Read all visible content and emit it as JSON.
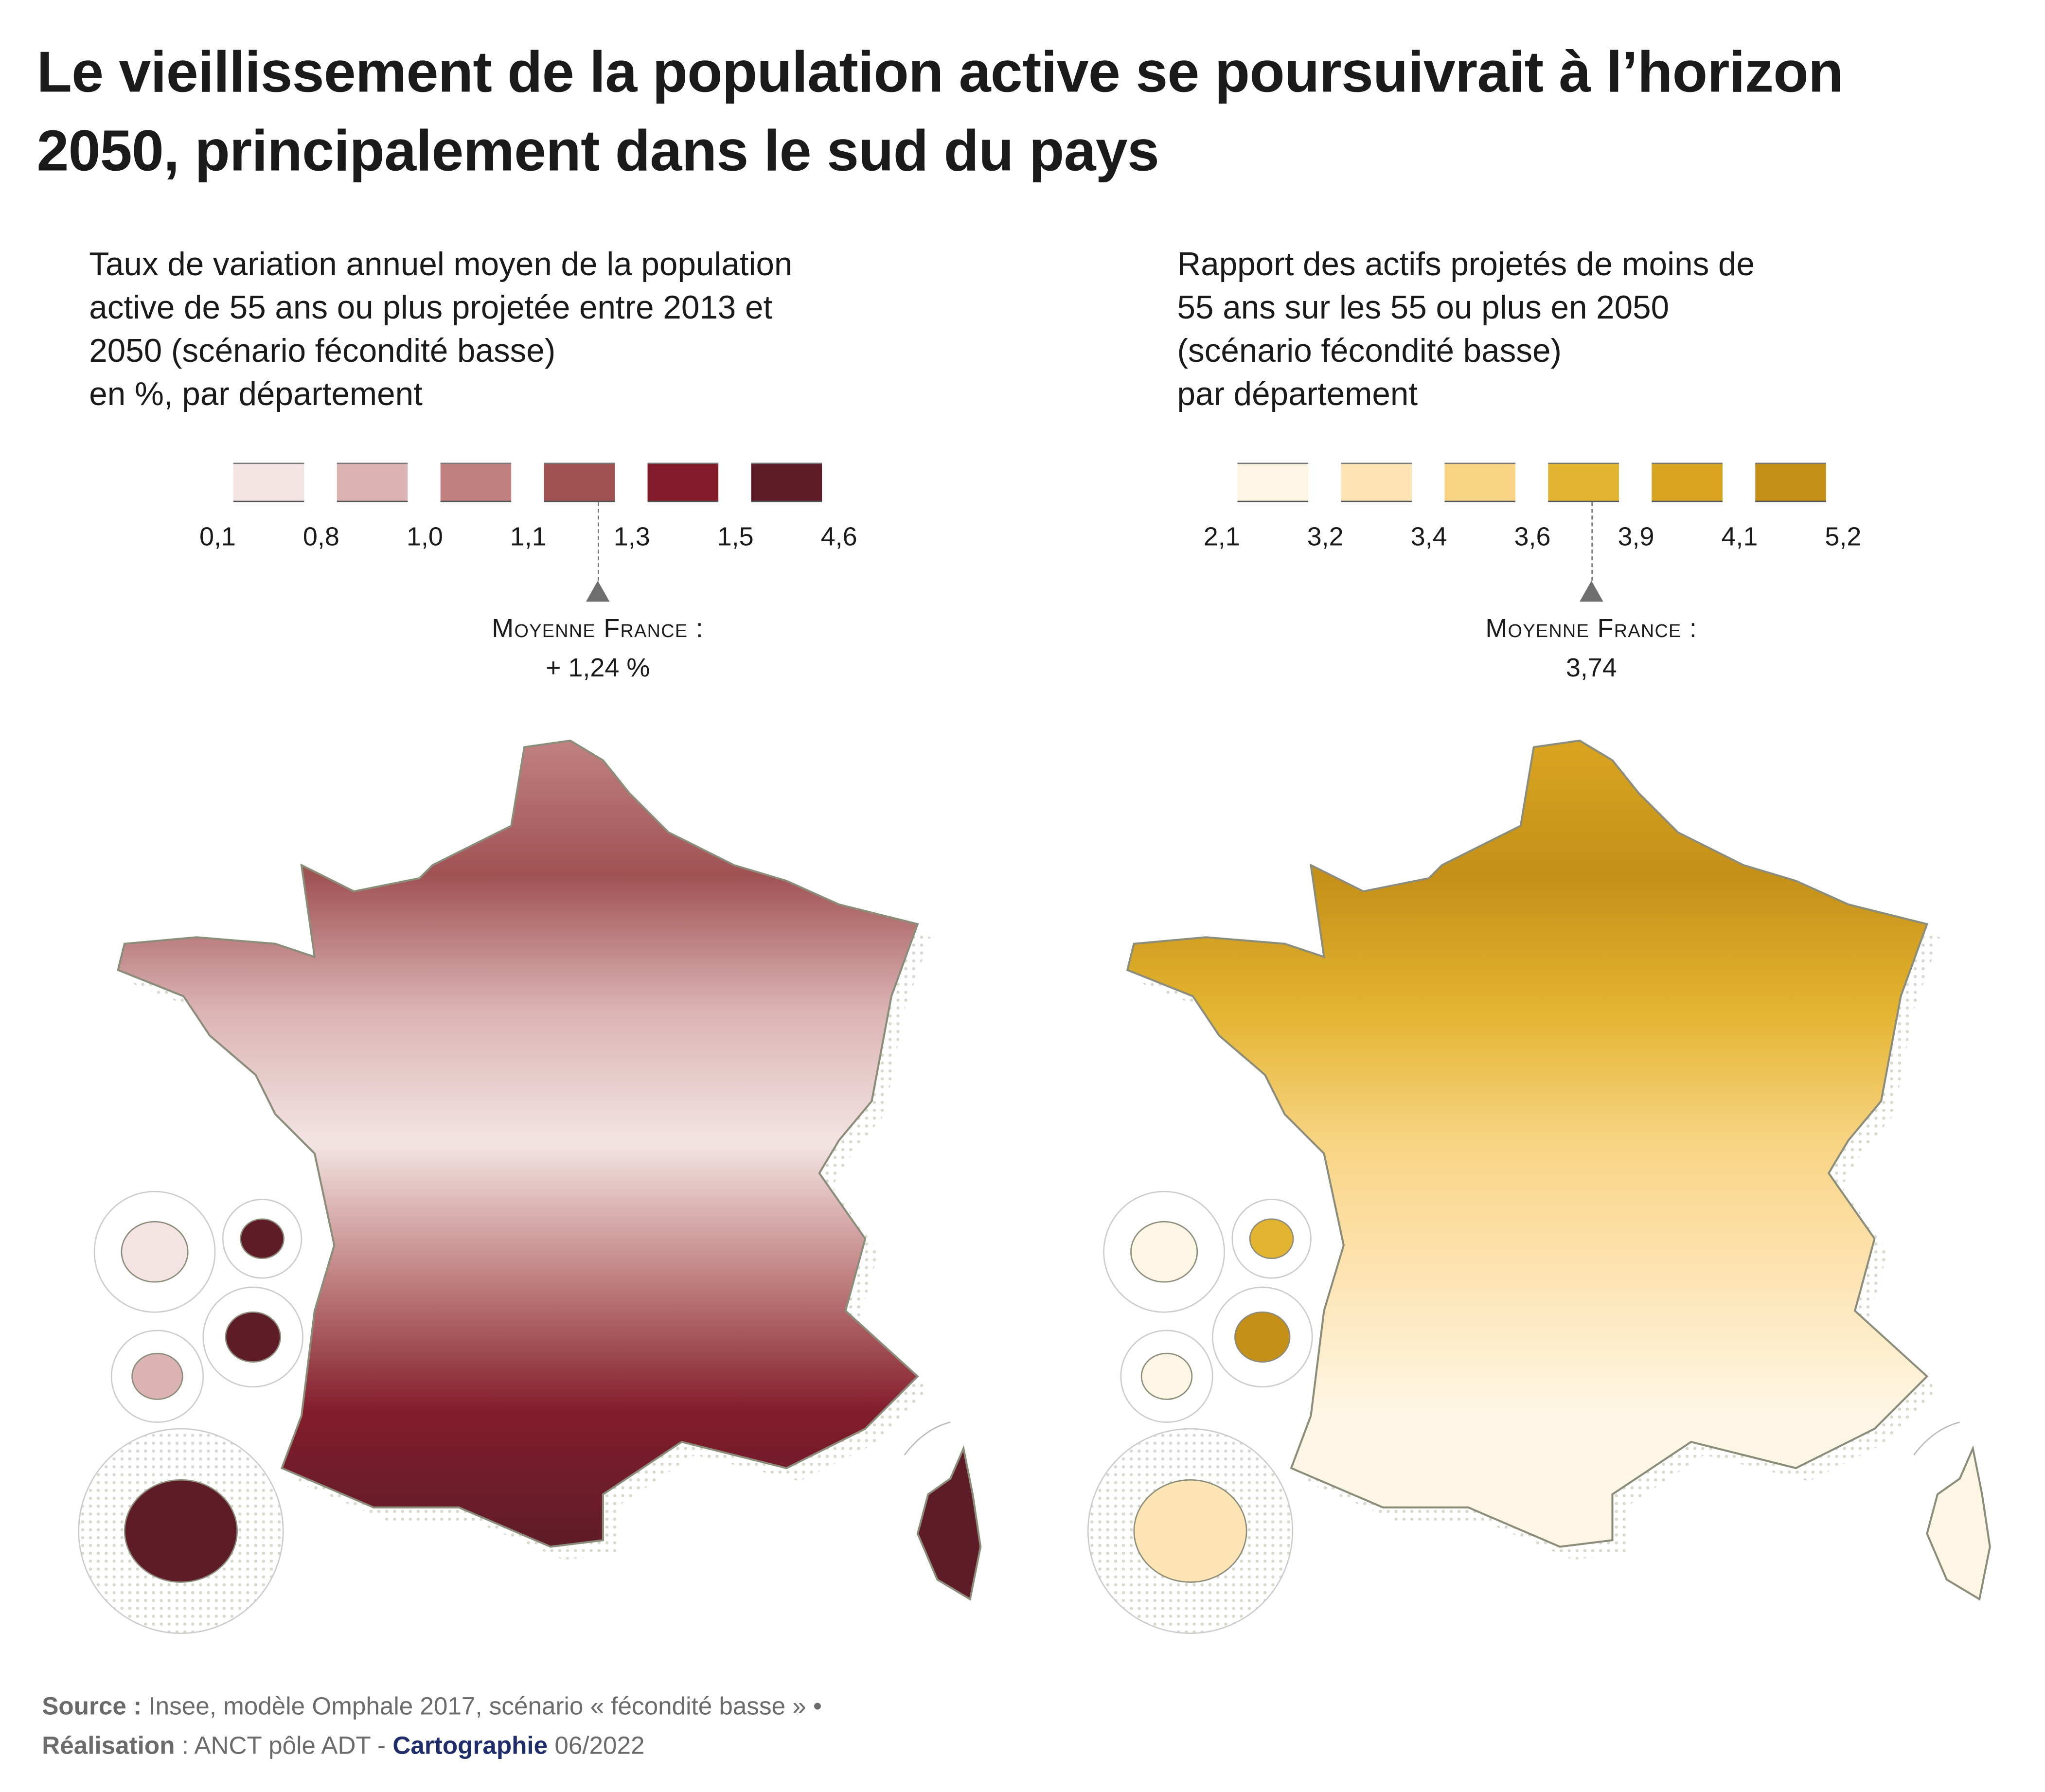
{
  "title": "Le vieillissement de la population active se poursuivrait à l’horizon 2050, principalement dans le sud du pays",
  "maps": [
    {
      "subtitle_lines": [
        "Taux de variation annuel moyen de la population",
        "active de 55 ans ou plus projetée entre 2013 et",
        "2050 (scénario fécondité basse)"
      ],
      "unit_line": "en %, par département",
      "legend": {
        "breaks": [
          "0,1",
          "0,8",
          "1,0",
          "1,1",
          "1,3",
          "1,5",
          "4,6"
        ],
        "colors": [
          "#f3e4e3",
          "#dbb3b3",
          "#c08180",
          "#a05253",
          "#821c2a",
          "#5e1c29"
        ]
      },
      "average": {
        "label": "Moyenne France :",
        "value": "+ 1,24 %"
      }
    },
    {
      "subtitle_lines": [
        "Rapport des actifs projetés de moins de",
        "55 ans sur les 55 ou plus en 2050",
        "(scénario fécondité basse)"
      ],
      "unit_line": "par département",
      "legend": {
        "breaks": [
          "2,1",
          "3,2",
          "3,4",
          "3,6",
          "3,9",
          "4,1",
          "5,2"
        ],
        "colors": [
          "#fef6e4",
          "#fde4b4",
          "#f8d484",
          "#e3b42f",
          "#d9a520",
          "#c49018"
        ]
      },
      "average": {
        "label": "Moyenne France :",
        "value": "3,74"
      }
    }
  ],
  "footer": {
    "source_label": "Source :",
    "source_text": "Insee, modèle Omphale 2017, scénario « fécondité basse » •",
    "realisation_label": "Réalisation",
    "realisation_text": ": ANCT pôle ADT -",
    "carto_label": "Cartographie",
    "date": "06/2022"
  }
}
